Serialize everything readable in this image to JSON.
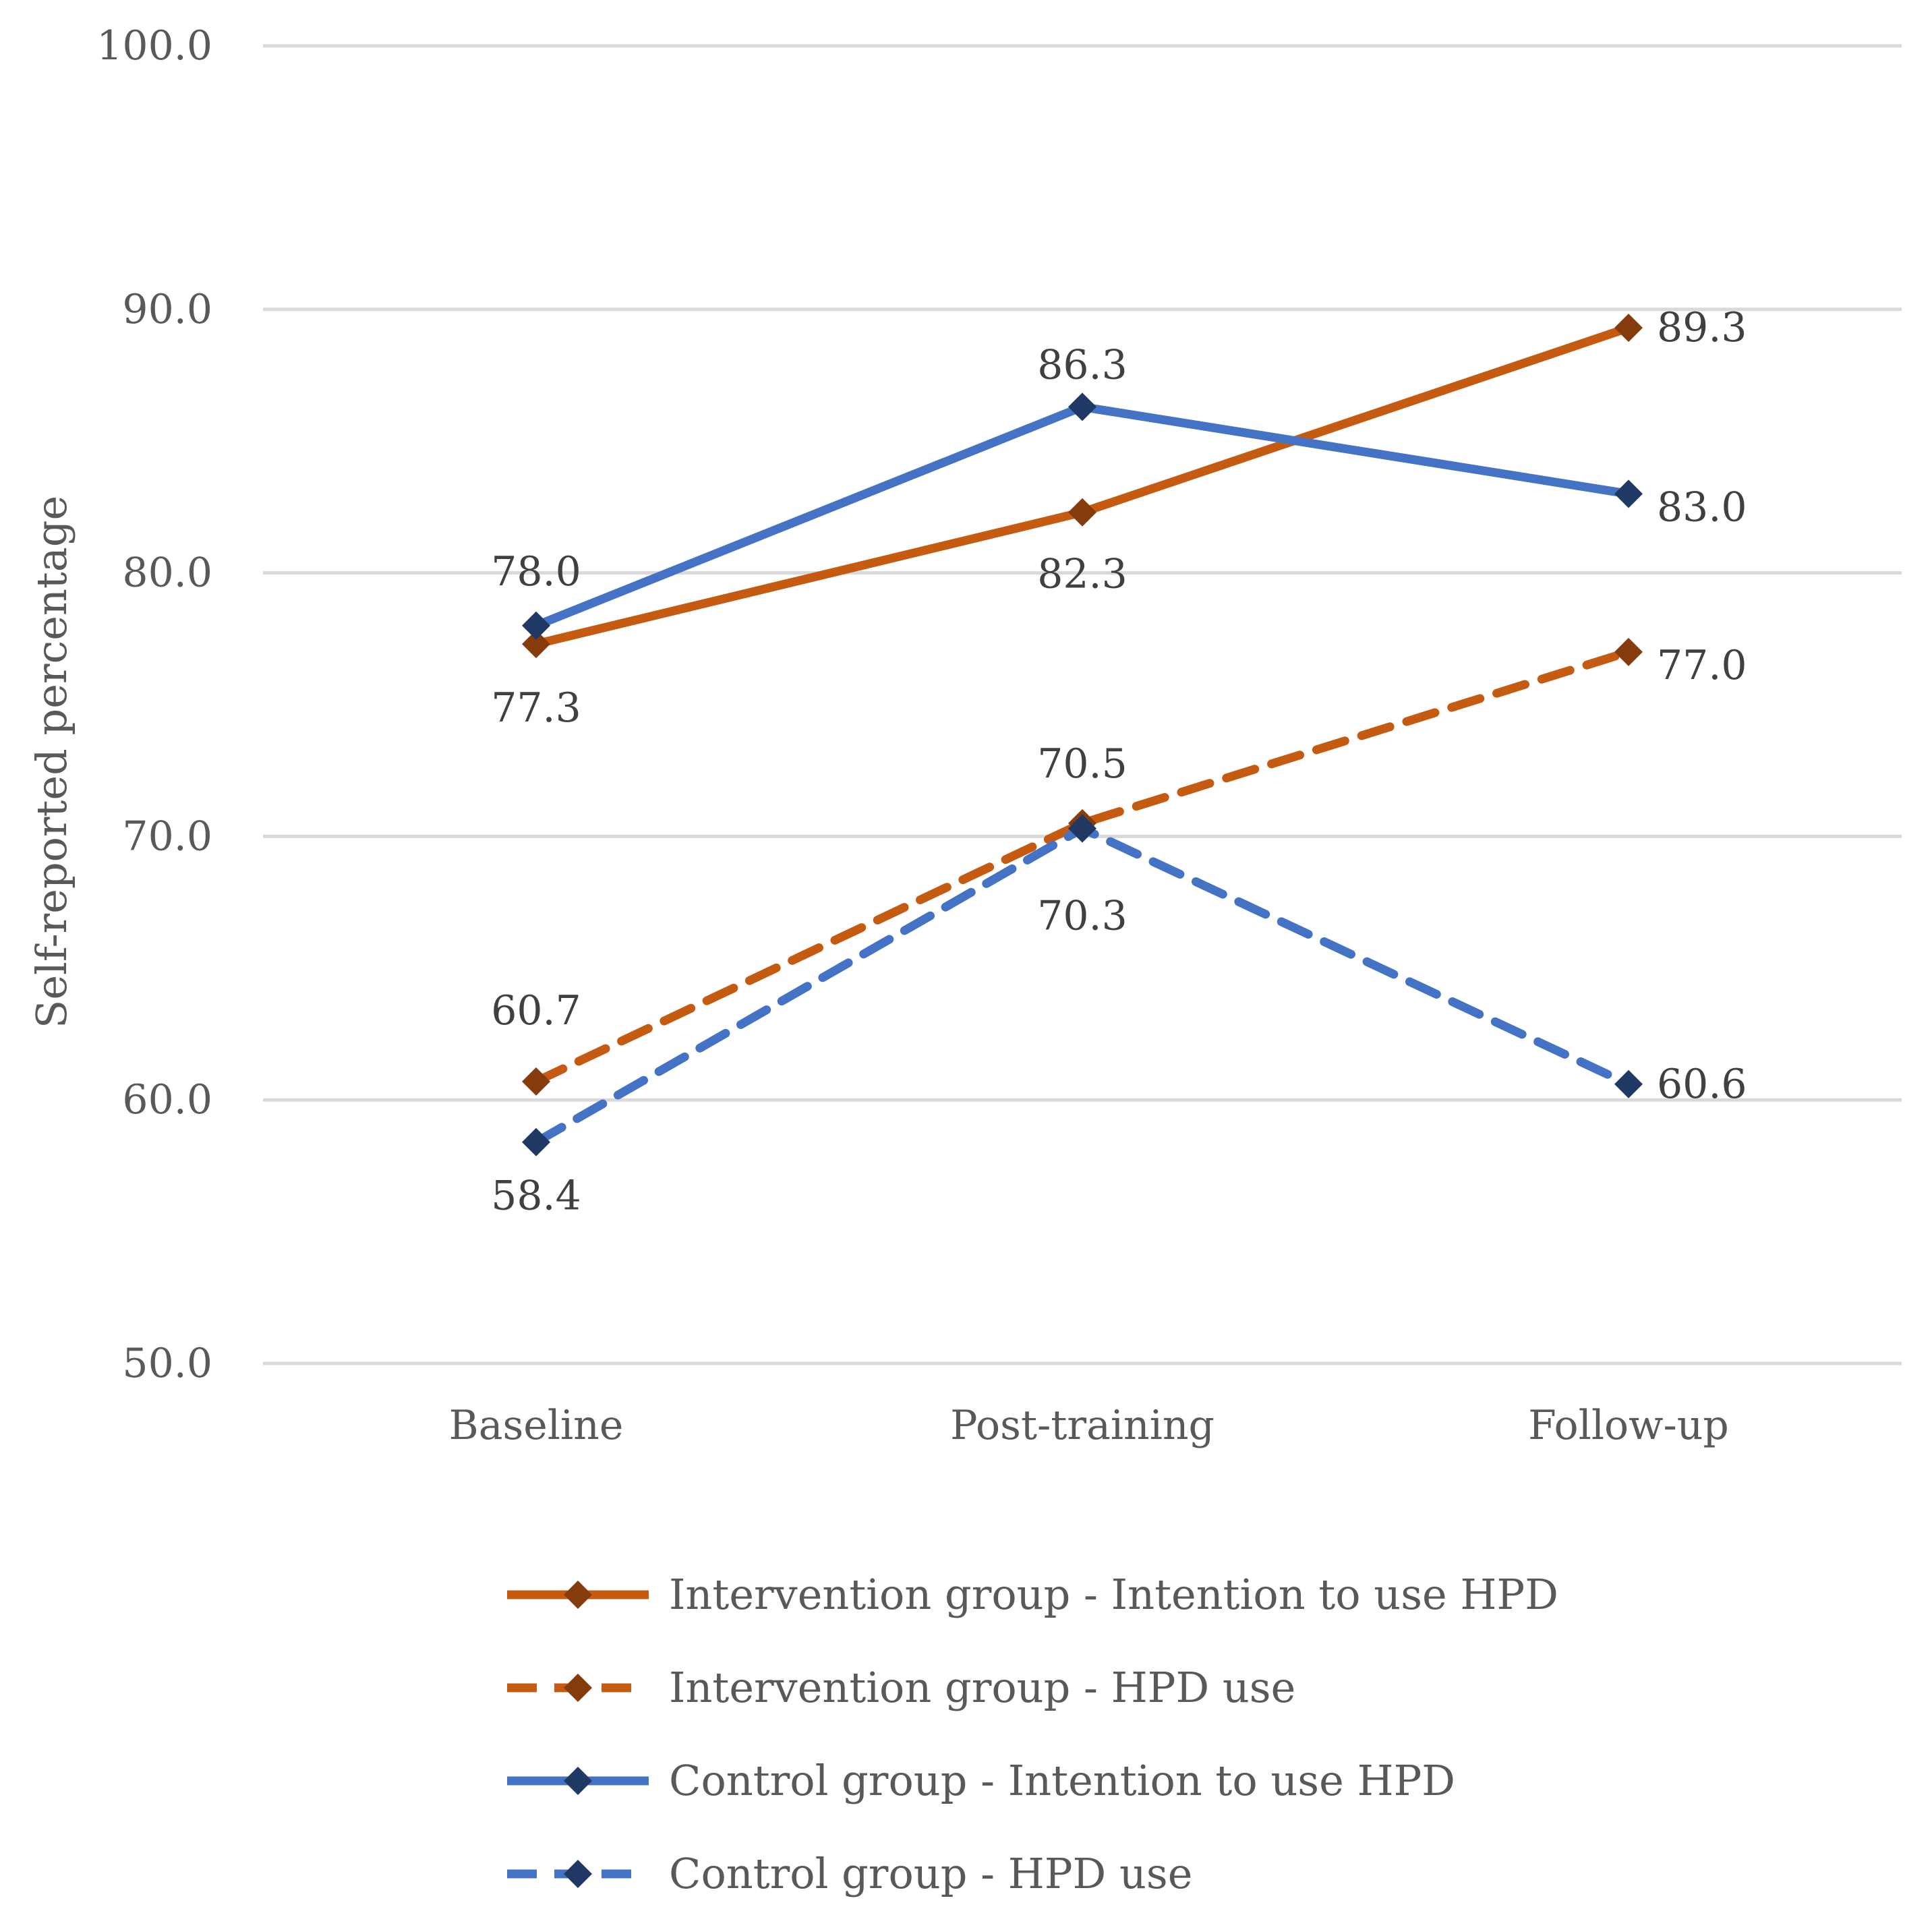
{
  "chart_data": {
    "type": "line",
    "title": "",
    "xlabel": "",
    "ylabel": "Self-reported percentage",
    "categories": [
      "Baseline",
      "Post-training",
      "Follow-up"
    ],
    "ylim": [
      50,
      100
    ],
    "yticks": [
      "50.0",
      "60.0",
      "70.0",
      "80.0",
      "90.0",
      "100.0"
    ],
    "grid": true,
    "legend_position": "bottom",
    "series": [
      {
        "name": "Intervention group - Intention to use HPD",
        "values": [
          77.3,
          82.3,
          89.3
        ],
        "labels": [
          "77.3",
          "82.3",
          "89.3"
        ],
        "color": "#C55A11",
        "marker_color": "#843C0C",
        "dashed": false
      },
      {
        "name": "Intervention group - HPD use",
        "values": [
          60.7,
          70.5,
          77.0
        ],
        "labels": [
          "60.7",
          "70.5",
          "77.0"
        ],
        "color": "#C55A11",
        "marker_color": "#843C0C",
        "dashed": true
      },
      {
        "name": "Control group - Intention to use HPD",
        "values": [
          78.0,
          86.3,
          83.0
        ],
        "labels": [
          "78.0",
          "86.3",
          "83.0"
        ],
        "color": "#4472C4",
        "marker_color": "#1F3864",
        "dashed": false
      },
      {
        "name": "Control group - HPD use",
        "values": [
          58.4,
          70.3,
          60.6
        ],
        "labels": [
          "58.4",
          "70.3",
          "60.6"
        ],
        "color": "#4472C4",
        "marker_color": "#1F3864",
        "dashed": true
      }
    ]
  }
}
